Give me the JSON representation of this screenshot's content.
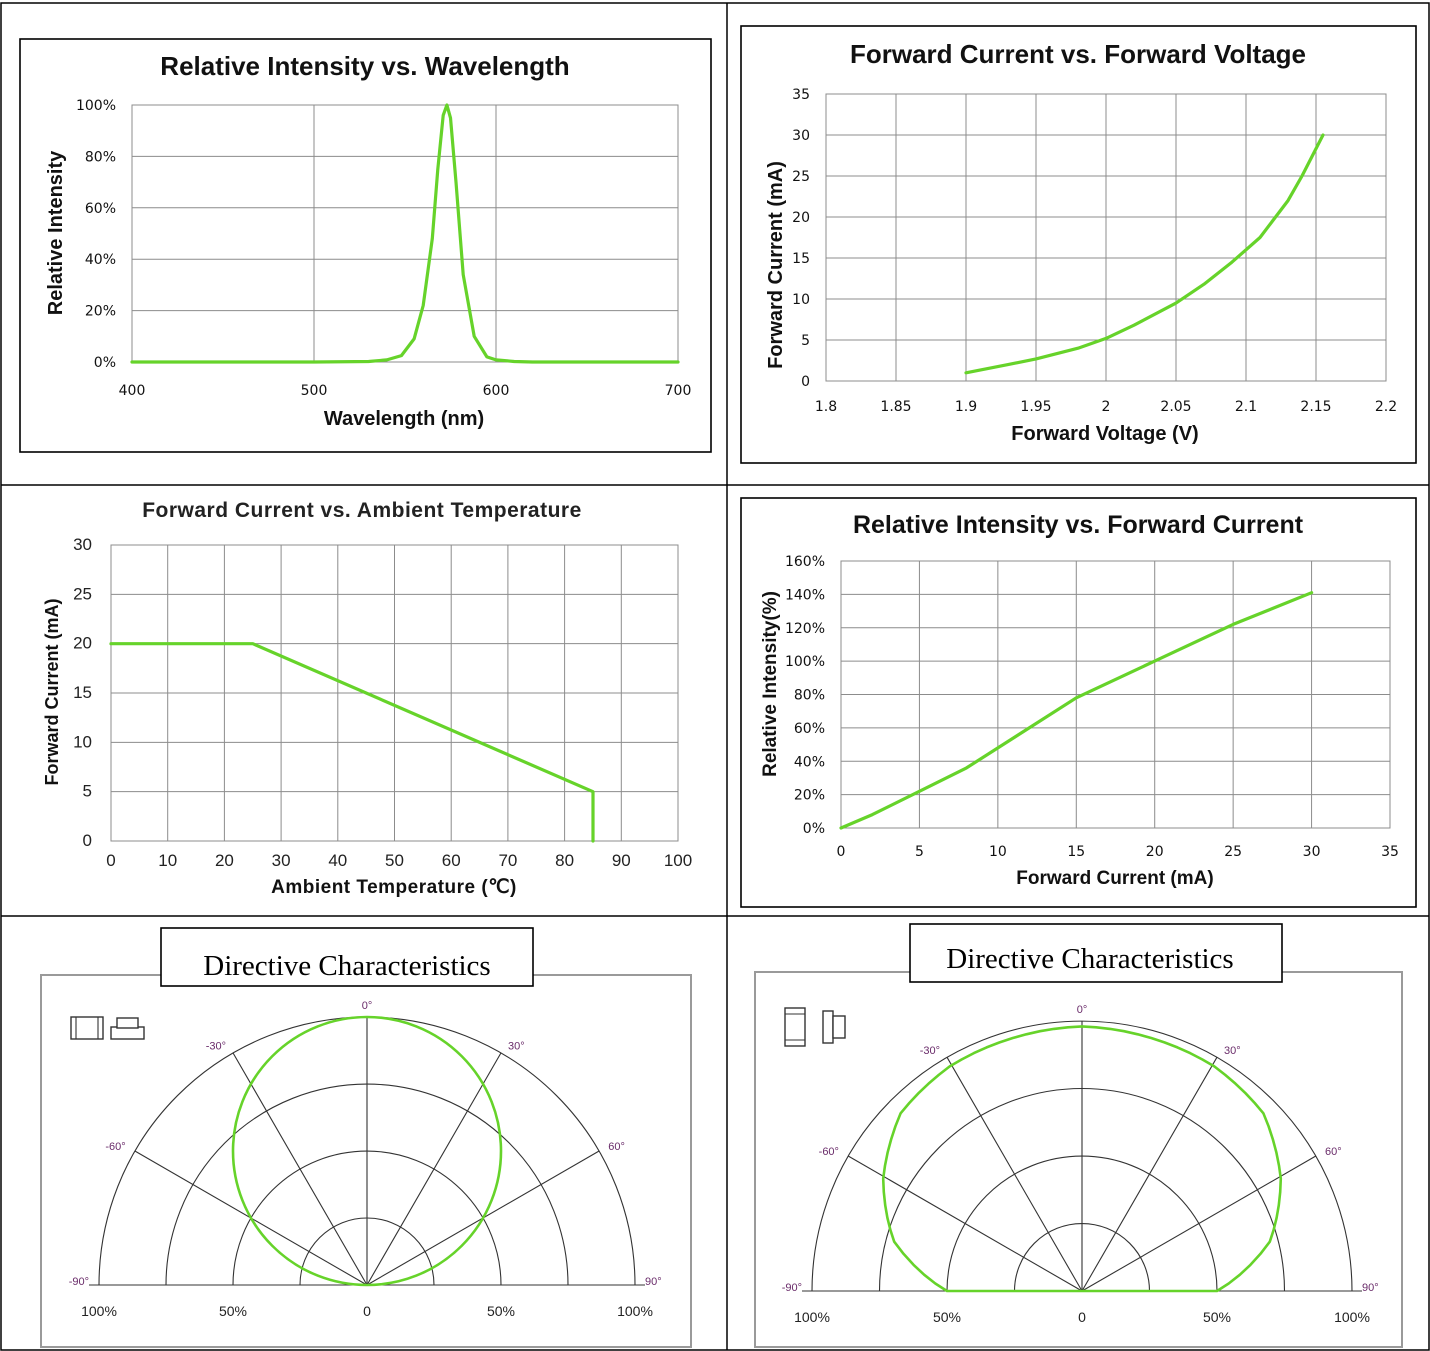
{
  "colors": {
    "curve": "#66d32a",
    "grid": "#8c8c8c",
    "border": "#000000"
  },
  "chart_data": [
    {
      "id": "c1",
      "type": "line",
      "title": "Relative Intensity vs. Wavelength",
      "xlabel": "Wavelength (nm)",
      "ylabel": "Relative Intensity",
      "xlim": [
        400,
        700
      ],
      "ylim": [
        0,
        100
      ],
      "xticks": [
        400,
        500,
        600,
        700
      ],
      "xtick_labels": [
        "400",
        "500",
        "600",
        "700"
      ],
      "yticks": [
        0,
        20,
        40,
        60,
        80,
        100
      ],
      "ytick_labels": [
        "0%",
        "20%",
        "40%",
        "60%",
        "80%",
        "100%"
      ],
      "grid": true,
      "series": [
        {
          "x": [
            400,
            500,
            530,
            540,
            548,
            555,
            560,
            565,
            568,
            571,
            573,
            575,
            578,
            582,
            588,
            595,
            600,
            610,
            620,
            700
          ],
          "y": [
            0,
            0,
            0.2,
            0.8,
            2.5,
            9,
            22,
            48,
            75,
            96,
            100,
            95,
            70,
            34,
            10,
            2,
            0.8,
            0.2,
            0,
            0
          ]
        }
      ]
    },
    {
      "id": "c2",
      "type": "line",
      "title": "Forward Current vs. Forward Voltage",
      "xlabel": "Forward Voltage  (V)",
      "ylabel": "Forward Current (mA)",
      "xlim": [
        1.8,
        2.2
      ],
      "ylim": [
        0,
        35
      ],
      "xticks": [
        1.8,
        1.85,
        1.9,
        1.95,
        2,
        2.05,
        2.1,
        2.15,
        2.2
      ],
      "xtick_labels": [
        "1.8",
        "1.85",
        "1.9",
        "1.95",
        "2",
        "2.05",
        "2.1",
        "2.15",
        "2.2"
      ],
      "yticks": [
        0,
        5,
        10,
        15,
        20,
        25,
        30,
        35
      ],
      "ytick_labels": [
        "0",
        "5",
        "10",
        "15",
        "20",
        "25",
        "30",
        "35"
      ],
      "grid": true,
      "series": [
        {
          "x": [
            1.9,
            1.93,
            1.95,
            1.98,
            2.0,
            2.02,
            2.05,
            2.07,
            2.09,
            2.11,
            2.13,
            2.14,
            2.155
          ],
          "y": [
            1,
            2,
            2.7,
            4,
            5.2,
            6.8,
            9.5,
            11.8,
            14.5,
            17.5,
            22,
            25,
            30
          ]
        }
      ]
    },
    {
      "id": "c3",
      "type": "line",
      "title": "Forward Current vs. Ambient Temperature",
      "xlabel": "Ambient Temperature (℃)",
      "ylabel": "Forward Current (mA)",
      "xlim": [
        0,
        100
      ],
      "ylim": [
        0,
        30
      ],
      "xticks": [
        0,
        10,
        20,
        30,
        40,
        50,
        60,
        70,
        80,
        90,
        100
      ],
      "xtick_labels": [
        "0",
        "10",
        "20",
        "30",
        "40",
        "50",
        "60",
        "70",
        "80",
        "90",
        "100"
      ],
      "yticks": [
        0,
        5,
        10,
        15,
        20,
        25,
        30
      ],
      "ytick_labels": [
        "0",
        "5",
        "10",
        "15",
        "20",
        "25",
        "30"
      ],
      "grid": true,
      "series": [
        {
          "x": [
            0,
            25,
            85,
            85
          ],
          "y": [
            20,
            20,
            5,
            0
          ]
        }
      ]
    },
    {
      "id": "c4",
      "type": "line",
      "title": "Relative Intensity   vs. Forward Current",
      "xlabel": "Forward Current (mA)",
      "ylabel": "Relative Intensity(%)",
      "xlim": [
        0,
        35
      ],
      "ylim": [
        0,
        160
      ],
      "xticks": [
        0,
        5,
        10,
        15,
        20,
        25,
        30,
        35
      ],
      "xtick_labels": [
        "0",
        "5",
        "10",
        "15",
        "20",
        "25",
        "30",
        "35"
      ],
      "yticks": [
        0,
        20,
        40,
        60,
        80,
        100,
        120,
        140,
        160
      ],
      "ytick_labels": [
        "0%",
        "20%",
        "40%",
        "60%",
        "80%",
        "100%",
        "120%",
        "140%",
        "160%"
      ],
      "grid": true,
      "series": [
        {
          "x": [
            0,
            2,
            5,
            8,
            10,
            15,
            20,
            25,
            30
          ],
          "y": [
            0,
            8,
            22,
            36,
            48,
            78,
            100,
            122,
            141
          ]
        }
      ]
    },
    {
      "id": "c5",
      "type": "polar",
      "title": "Directive Characteristics",
      "angle_labels": [
        "0°",
        "30°",
        "60°",
        "90°",
        "-30°",
        "-60°",
        "-90°"
      ],
      "radial_labels": [
        "100%",
        "50%",
        "0",
        "50%",
        "100%"
      ],
      "icon": "horizontal-package",
      "series": [
        {
          "angles": [
            -90,
            -60,
            -30,
            0,
            30,
            60,
            90
          ],
          "values": [
            0,
            0.5,
            0.87,
            1,
            0.87,
            0.5,
            0
          ],
          "shape": "circle"
        }
      ]
    },
    {
      "id": "c6",
      "type": "polar",
      "title": "Directive Characteristics",
      "angle_labels": [
        "0°",
        "30°",
        "60°",
        "90°",
        "-30°",
        "-60°",
        "-90°"
      ],
      "radial_labels": [
        "100%",
        "50%",
        "0",
        "50%",
        "100%"
      ],
      "icon": "vertical-package",
      "series": [
        {
          "angles": [
            -90,
            -75,
            -60,
            -45,
            -30,
            0,
            30,
            45,
            60,
            75,
            90
          ],
          "values": [
            0.5,
            0.72,
            0.85,
            0.95,
            0.98,
            1,
            0.98,
            0.95,
            0.85,
            0.72,
            0.5
          ],
          "shape": "wide"
        }
      ]
    }
  ]
}
